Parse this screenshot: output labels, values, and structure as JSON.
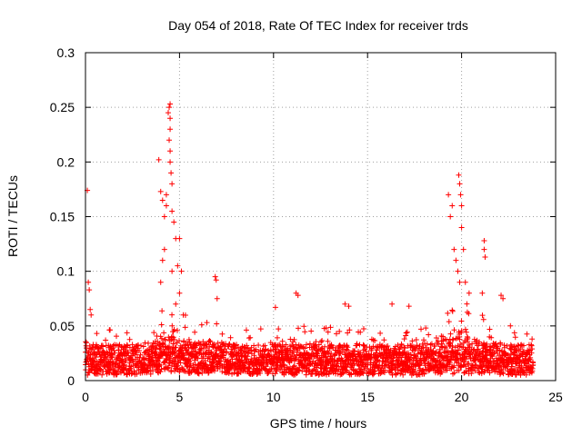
{
  "chart_data": {
    "type": "scatter",
    "title": "Day 054 of 2018, Rate Of TEC Index for receiver trds",
    "xlabel": "GPS time / hours",
    "ylabel": "ROTI / TECUs",
    "xlim": [
      0,
      25
    ],
    "ylim": [
      0,
      0.3
    ],
    "xticks": [
      0,
      5,
      10,
      15,
      20,
      25
    ],
    "xtick_labels": [
      "0",
      "5",
      "10",
      "15",
      "20",
      "25"
    ],
    "yticks": [
      0,
      0.05,
      0.1,
      0.15,
      0.2,
      0.25,
      0.3
    ],
    "ytick_labels": [
      "0",
      "0.05",
      "0.1",
      "0.15",
      "0.2",
      "0.25",
      "0.3"
    ],
    "grid": true,
    "marker": "+",
    "marker_color": "#ff0000",
    "series": [
      {
        "name": "ROTI",
        "description": "dense band of points roughly 0.005–0.035 TECU across 0–23.8 h with enhanced activity near 4–5 h and 19–21 h",
        "points": [
          [
            0.1,
            0.174
          ],
          [
            0.15,
            0.09
          ],
          [
            0.2,
            0.083
          ],
          [
            0.25,
            0.065
          ],
          [
            0.3,
            0.06
          ],
          [
            3.9,
            0.202
          ],
          [
            4.0,
            0.173
          ],
          [
            4.1,
            0.165
          ],
          [
            4.2,
            0.15
          ],
          [
            4.3,
            0.16
          ],
          [
            4.4,
            0.245
          ],
          [
            4.45,
            0.25
          ],
          [
            4.5,
            0.253
          ],
          [
            4.5,
            0.24
          ],
          [
            4.5,
            0.23
          ],
          [
            4.45,
            0.22
          ],
          [
            4.5,
            0.21
          ],
          [
            4.5,
            0.2
          ],
          [
            4.55,
            0.19
          ],
          [
            4.6,
            0.18
          ],
          [
            4.3,
            0.17
          ],
          [
            4.6,
            0.155
          ],
          [
            4.7,
            0.145
          ],
          [
            4.8,
            0.13
          ],
          [
            5.0,
            0.13
          ],
          [
            4.2,
            0.12
          ],
          [
            4.1,
            0.11
          ],
          [
            4.6,
            0.1
          ],
          [
            4.9,
            0.105
          ],
          [
            5.1,
            0.1
          ],
          [
            4.0,
            0.09
          ],
          [
            5.0,
            0.08
          ],
          [
            4.8,
            0.07
          ],
          [
            5.2,
            0.06
          ],
          [
            6.9,
            0.095
          ],
          [
            6.95,
            0.092
          ],
          [
            7.0,
            0.075
          ],
          [
            11.2,
            0.08
          ],
          [
            11.3,
            0.078
          ],
          [
            10.1,
            0.067
          ],
          [
            13.8,
            0.07
          ],
          [
            14.0,
            0.068
          ],
          [
            16.3,
            0.07
          ],
          [
            17.2,
            0.068
          ],
          [
            19.3,
            0.17
          ],
          [
            19.5,
            0.16
          ],
          [
            19.4,
            0.15
          ],
          [
            19.6,
            0.12
          ],
          [
            19.7,
            0.11
          ],
          [
            19.8,
            0.1
          ],
          [
            19.9,
            0.09
          ],
          [
            19.85,
            0.188
          ],
          [
            19.9,
            0.18
          ],
          [
            19.95,
            0.17
          ],
          [
            20.0,
            0.16
          ],
          [
            20.0,
            0.14
          ],
          [
            20.1,
            0.12
          ],
          [
            20.2,
            0.09
          ],
          [
            20.4,
            0.08
          ],
          [
            21.2,
            0.128
          ],
          [
            21.2,
            0.12
          ],
          [
            21.25,
            0.113
          ],
          [
            21.1,
            0.08
          ],
          [
            22.1,
            0.078
          ],
          [
            22.2,
            0.075
          ]
        ]
      }
    ]
  }
}
